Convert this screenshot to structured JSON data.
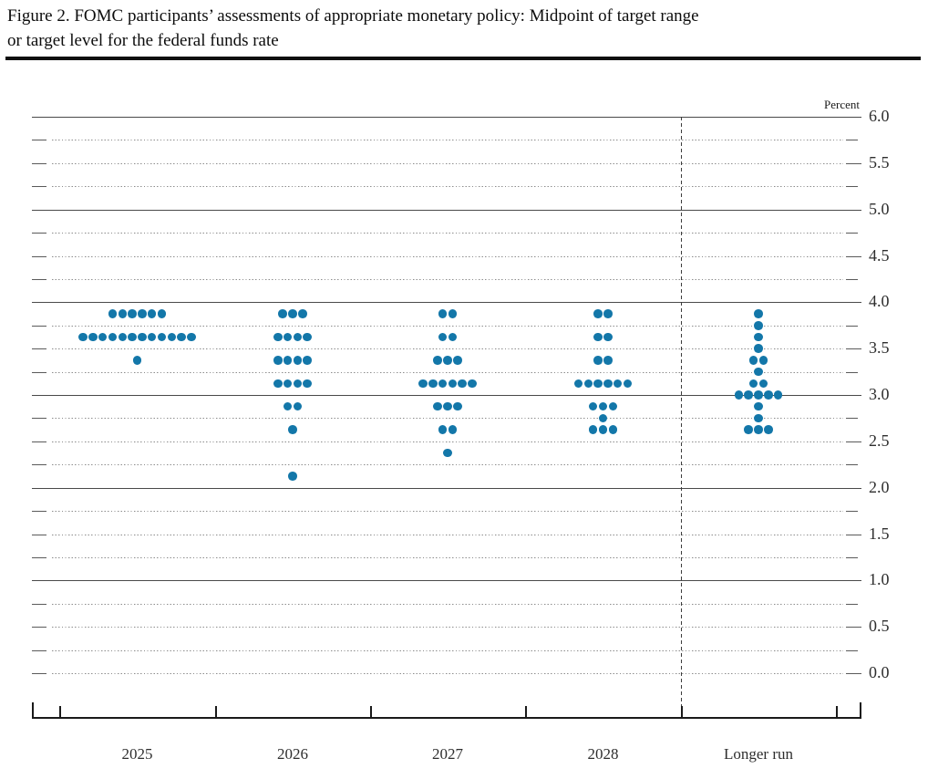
{
  "header": {
    "title_line1": "Figure 2. FOMC participants’ assessments of appropriate monetary policy: Midpoint of target range",
    "title_line2": "or target level for the federal funds rate"
  },
  "chart_data": {
    "type": "scatter",
    "title": "Figure 2. FOMC participants’ assessments of appropriate monetary policy: Midpoint of target range or target level for the federal funds rate",
    "ylabel": "Percent",
    "xlabel": "",
    "ylim": [
      0.0,
      6.0
    ],
    "ytick_labels": [
      "6.0",
      "5.5",
      "5.0",
      "4.5",
      "4.0",
      "3.5",
      "3.0",
      "2.5",
      "2.0",
      "1.5",
      "1.0",
      "0.5",
      "0.0"
    ],
    "ytick_values": [
      6.0,
      5.5,
      5.0,
      4.5,
      4.0,
      3.5,
      3.0,
      2.5,
      2.0,
      1.5,
      1.0,
      0.5,
      0.0
    ],
    "minor_grid_step": 0.25,
    "solid_gridlines_at": [
      6.0,
      5.0,
      4.0,
      3.0,
      2.0,
      1.0
    ],
    "grid": "on",
    "legend_position": "none",
    "categories": [
      "2025",
      "2026",
      "2027",
      "2028",
      "Longer run"
    ],
    "separator_before_category": "Longer run",
    "dot_color": "#1377a9",
    "dots_per_participant": 1,
    "participants_per_column": 19,
    "series": [
      {
        "name": "2025",
        "dots": [
          {
            "value": 3.875,
            "count": 6
          },
          {
            "value": 3.625,
            "count": 12
          },
          {
            "value": 3.375,
            "count": 1
          }
        ]
      },
      {
        "name": "2026",
        "dots": [
          {
            "value": 3.875,
            "count": 3
          },
          {
            "value": 3.625,
            "count": 4
          },
          {
            "value": 3.375,
            "count": 4
          },
          {
            "value": 3.125,
            "count": 4
          },
          {
            "value": 2.875,
            "count": 2
          },
          {
            "value": 2.625,
            "count": 1
          },
          {
            "value": 2.125,
            "count": 1
          }
        ]
      },
      {
        "name": "2027",
        "dots": [
          {
            "value": 3.875,
            "count": 2
          },
          {
            "value": 3.625,
            "count": 2
          },
          {
            "value": 3.375,
            "count": 3
          },
          {
            "value": 3.125,
            "count": 6
          },
          {
            "value": 2.875,
            "count": 3
          },
          {
            "value": 2.625,
            "count": 2
          },
          {
            "value": 2.375,
            "count": 1
          }
        ]
      },
      {
        "name": "2028",
        "dots": [
          {
            "value": 3.875,
            "count": 2
          },
          {
            "value": 3.625,
            "count": 2
          },
          {
            "value": 3.375,
            "count": 2
          },
          {
            "value": 3.125,
            "count": 6
          },
          {
            "value": 2.875,
            "count": 3
          },
          {
            "value": 2.75,
            "count": 1
          },
          {
            "value": 2.625,
            "count": 3
          }
        ]
      },
      {
        "name": "Longer run",
        "dots": [
          {
            "value": 3.875,
            "count": 1
          },
          {
            "value": 3.75,
            "count": 1
          },
          {
            "value": 3.625,
            "count": 1
          },
          {
            "value": 3.5,
            "count": 1
          },
          {
            "value": 3.375,
            "count": 2
          },
          {
            "value": 3.25,
            "count": 1
          },
          {
            "value": 3.125,
            "count": 2
          },
          {
            "value": 3.0,
            "count": 5
          },
          {
            "value": 2.875,
            "count": 1
          },
          {
            "value": 2.75,
            "count": 1
          },
          {
            "value": 2.625,
            "count": 3
          }
        ]
      }
    ]
  }
}
